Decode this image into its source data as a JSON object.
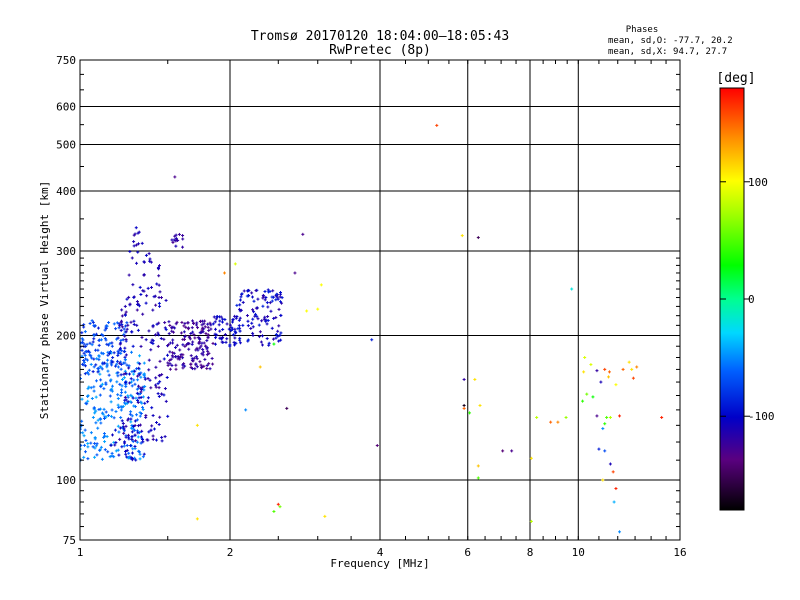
{
  "chart_data": {
    "type": "scatter",
    "title": "Tromsø 20170120 18:04:00–18:05:43",
    "subtitle": "RwPretec (8p)",
    "xlabel": "Frequency [MHz]",
    "ylabel": "Stationary phase Virtual Height [km]",
    "x_scale": "log2",
    "y_scale": "log",
    "xlim": [
      1,
      16
    ],
    "ylim": [
      75,
      750
    ],
    "x_ticks": [
      1,
      2,
      4,
      6,
      8,
      10,
      16
    ],
    "x_tick_labels": [
      "1",
      "2",
      "4",
      "6",
      "8",
      "10",
      "16"
    ],
    "y_ticks": [
      75,
      100,
      200,
      300,
      400,
      500,
      600,
      750
    ],
    "y_tick_labels": [
      "75",
      "100",
      "200",
      "300",
      "400",
      "500",
      "600",
      "750"
    ],
    "grid": true,
    "phase_info": {
      "heading": "Phases",
      "line_o": "mean, sd,O: -77.7, 20.2",
      "line_x": "mean, sd,X:  94.7, 27.7"
    },
    "colorbar": {
      "label": "[deg]",
      "range": [
        -180,
        180
      ],
      "ticks": [
        100,
        0,
        -100
      ],
      "tick_labels": [
        "100",
        "0",
        "-100"
      ]
    },
    "clusters": [
      {
        "f": [
          1.0,
          1.35
        ],
        "h": [
          110,
          185
        ],
        "phase": [
          -70,
          -40
        ],
        "n": 260
      },
      {
        "f": [
          1.0,
          1.25
        ],
        "h": [
          165,
          215
        ],
        "phase": [
          -95,
          -55
        ],
        "n": 120
      },
      {
        "f": [
          1.2,
          1.5
        ],
        "h": [
          120,
          250
        ],
        "phase": [
          -125,
          -95
        ],
        "n": 180
      },
      {
        "f": [
          1.25,
          1.45
        ],
        "h": [
          250,
          300
        ],
        "phase": [
          -120,
          -100
        ],
        "n": 25
      },
      {
        "f": [
          1.28,
          1.34
        ],
        "h": [
          300,
          350
        ],
        "phase": [
          -120,
          -100
        ],
        "n": 10
      },
      {
        "f": [
          1.5,
          1.85
        ],
        "h": [
          170,
          215
        ],
        "phase": [
          -135,
          -110
        ],
        "n": 160
      },
      {
        "f": [
          1.85,
          2.1
        ],
        "h": [
          190,
          220
        ],
        "phase": [
          -115,
          -95
        ],
        "n": 60
      },
      {
        "f": [
          2.05,
          2.55
        ],
        "h": [
          190,
          250
        ],
        "phase": [
          -120,
          -85
        ],
        "n": 110
      },
      {
        "f": [
          1.15,
          1.35
        ],
        "h": [
          110,
          130
        ],
        "phase": [
          -110,
          -90
        ],
        "n": 30
      },
      {
        "f": [
          1.52,
          1.62
        ],
        "h": [
          305,
          325
        ],
        "phase": [
          -130,
          -110
        ],
        "n": 14
      }
    ],
    "points": [
      {
        "x": 5.2,
        "y": 548,
        "phase": 160
      },
      {
        "x": 1.55,
        "y": 428,
        "phase": -130
      },
      {
        "x": 2.8,
        "y": 325,
        "phase": -130
      },
      {
        "x": 5.85,
        "y": 323,
        "phase": 110
      },
      {
        "x": 6.3,
        "y": 320,
        "phase": -150
      },
      {
        "x": 9.7,
        "y": 250,
        "phase": -20
      },
      {
        "x": 1.95,
        "y": 270,
        "phase": 140
      },
      {
        "x": 2.05,
        "y": 282,
        "phase": 90
      },
      {
        "x": 2.7,
        "y": 270,
        "phase": -130
      },
      {
        "x": 3.05,
        "y": 255,
        "phase": 100
      },
      {
        "x": 2.85,
        "y": 225,
        "phase": 100
      },
      {
        "x": 3.0,
        "y": 227,
        "phase": 100
      },
      {
        "x": 3.85,
        "y": 196,
        "phase": -90
      },
      {
        "x": 2.45,
        "y": 192,
        "phase": 30
      },
      {
        "x": 2.3,
        "y": 172,
        "phase": 120
      },
      {
        "x": 2.15,
        "y": 140,
        "phase": -50
      },
      {
        "x": 2.6,
        "y": 141,
        "phase": -150
      },
      {
        "x": 1.72,
        "y": 130,
        "phase": 110
      },
      {
        "x": 3.95,
        "y": 118,
        "phase": -140
      },
      {
        "x": 5.9,
        "y": 162,
        "phase": -120
      },
      {
        "x": 6.2,
        "y": 162,
        "phase": 110
      },
      {
        "x": 5.9,
        "y": 143,
        "phase": -170
      },
      {
        "x": 5.9,
        "y": 141,
        "phase": 150
      },
      {
        "x": 6.05,
        "y": 138,
        "phase": 40
      },
      {
        "x": 6.35,
        "y": 143,
        "phase": 110
      },
      {
        "x": 6.3,
        "y": 107,
        "phase": 120
      },
      {
        "x": 6.3,
        "y": 101,
        "phase": 50
      },
      {
        "x": 7.05,
        "y": 115,
        "phase": -140
      },
      {
        "x": 7.35,
        "y": 115,
        "phase": -130
      },
      {
        "x": 8.05,
        "y": 111,
        "phase": 110
      },
      {
        "x": 8.25,
        "y": 135,
        "phase": 80
      },
      {
        "x": 8.8,
        "y": 132,
        "phase": 150
      },
      {
        "x": 9.1,
        "y": 132,
        "phase": 140
      },
      {
        "x": 9.45,
        "y": 135,
        "phase": 70
      },
      {
        "x": 8.05,
        "y": 82,
        "phase": 80
      },
      {
        "x": 10.3,
        "y": 180,
        "phase": 90
      },
      {
        "x": 10.25,
        "y": 168,
        "phase": 110
      },
      {
        "x": 10.6,
        "y": 174,
        "phase": 90
      },
      {
        "x": 10.9,
        "y": 169,
        "phase": -120
      },
      {
        "x": 11.1,
        "y": 160,
        "phase": -110
      },
      {
        "x": 11.3,
        "y": 170,
        "phase": 160
      },
      {
        "x": 11.55,
        "y": 168,
        "phase": 150
      },
      {
        "x": 11.5,
        "y": 164,
        "phase": 120
      },
      {
        "x": 11.9,
        "y": 158,
        "phase": 100
      },
      {
        "x": 12.3,
        "y": 170,
        "phase": 150
      },
      {
        "x": 12.65,
        "y": 176,
        "phase": 110
      },
      {
        "x": 12.8,
        "y": 170,
        "phase": 110
      },
      {
        "x": 12.9,
        "y": 163,
        "phase": 160
      },
      {
        "x": 13.1,
        "y": 172,
        "phase": 140
      },
      {
        "x": 10.2,
        "y": 146,
        "phase": 40
      },
      {
        "x": 10.4,
        "y": 151,
        "phase": 60
      },
      {
        "x": 10.7,
        "y": 149,
        "phase": 30
      },
      {
        "x": 10.9,
        "y": 136,
        "phase": -130
      },
      {
        "x": 11.3,
        "y": 131,
        "phase": 40
      },
      {
        "x": 11.4,
        "y": 135,
        "phase": 50
      },
      {
        "x": 11.6,
        "y": 135,
        "phase": 80
      },
      {
        "x": 12.1,
        "y": 136,
        "phase": 170
      },
      {
        "x": 11.2,
        "y": 128,
        "phase": -50
      },
      {
        "x": 11.0,
        "y": 116,
        "phase": -90
      },
      {
        "x": 11.3,
        "y": 115,
        "phase": -70
      },
      {
        "x": 11.6,
        "y": 108,
        "phase": -110
      },
      {
        "x": 11.75,
        "y": 104,
        "phase": 160
      },
      {
        "x": 11.2,
        "y": 100,
        "phase": 110
      },
      {
        "x": 11.9,
        "y": 96,
        "phase": 170
      },
      {
        "x": 11.8,
        "y": 90,
        "phase": -40
      },
      {
        "x": 12.1,
        "y": 78,
        "phase": -50
      },
      {
        "x": 14.7,
        "y": 135,
        "phase": 170
      },
      {
        "x": 2.5,
        "y": 89,
        "phase": 170
      },
      {
        "x": 2.52,
        "y": 88,
        "phase": 60
      },
      {
        "x": 2.45,
        "y": 86,
        "phase": 50
      },
      {
        "x": 3.1,
        "y": 84,
        "phase": 110
      },
      {
        "x": 1.72,
        "y": 83,
        "phase": 110
      }
    ]
  }
}
